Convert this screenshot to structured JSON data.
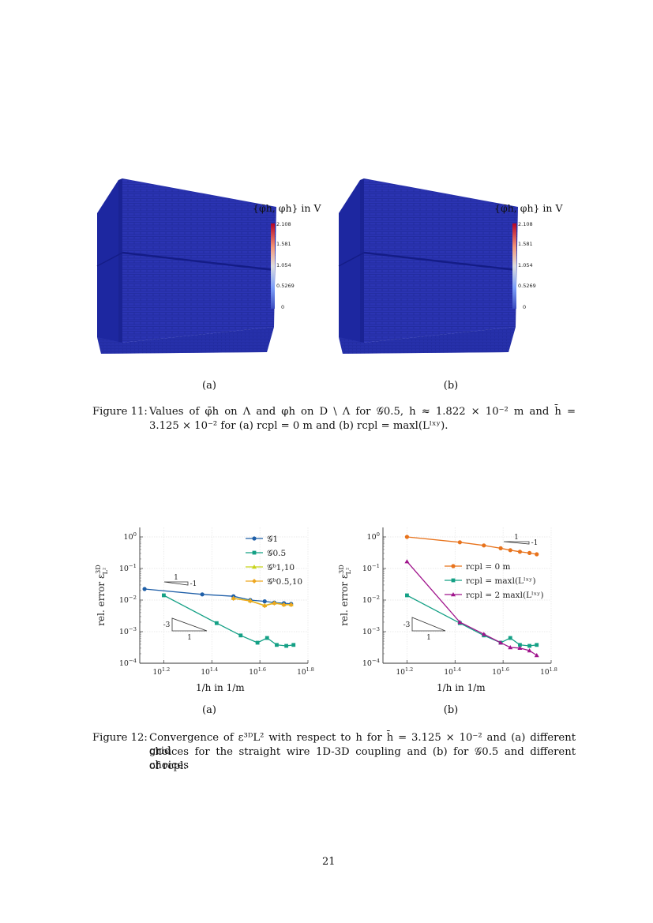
{
  "figure11": {
    "panels": [
      {
        "id": "a",
        "label": "(a)",
        "colorbar": {
          "title": "{φ̄h, φh} in V",
          "ticks": [
            "2.108",
            "1.581",
            "1.054",
            "0.5269",
            "0"
          ],
          "colors": [
            "#b40426",
            "#f4987a",
            "#dddddd",
            "#7da0f9",
            "#3b4cc0"
          ]
        }
      },
      {
        "id": "b",
        "label": "(b)",
        "colorbar": {
          "title": "{φ̄h, φh} in V",
          "ticks": [
            "2.108",
            "1.581",
            "1.054",
            "0.5269",
            "0"
          ],
          "colors": [
            "#b40426",
            "#f4987a",
            "#dddddd",
            "#7da0f9",
            "#3b4cc0"
          ]
        }
      }
    ],
    "cube_color": "#2a35b0",
    "caption_label": "Figure 11:",
    "caption_line1": "Values of φ̄h on Λ and φh on D \\ Λ for 𝒢0.5, h ≈ 1.822 × 10⁻² m and h̄ =",
    "caption_line2": "3.125 × 10⁻² for (a) rcpl = 0 m and (b) rcpl = maxl(Lˡˣʸ)."
  },
  "figure12": {
    "panels": [
      {
        "label": "(a)"
      },
      {
        "label": "(b)"
      }
    ],
    "caption_label": "Figure 12:",
    "caption_line1": "Convergence of ε³ᴰL² with respect to h for h̄ = 3.125 × 10⁻² and (a) different grid",
    "caption_line2": "choices for the straight wire 1D-3D coupling and (b) for 𝒢0.5 and different choices",
    "caption_line3": "of rcpl."
  },
  "chart_data": [
    {
      "type": "line",
      "title": "(a)",
      "xlabel": "1/h in 1/m",
      "ylabel": "rel. error ε³ᴰL²",
      "xscale": "log",
      "yscale": "log",
      "xlim_log10": [
        1.1,
        1.8
      ],
      "ylim_log10": [
        -4,
        0.3
      ],
      "xticks": [
        "10^1.2",
        "10^1.4",
        "10^1.6",
        "10^1.8"
      ],
      "yticks": [
        "10^0",
        "10^-1",
        "10^-2",
        "10^-3",
        "10^-4"
      ],
      "grid": true,
      "legend_position": "upper right",
      "slope_triangles": [
        {
          "label_run": "1",
          "label_rise": "-1"
        },
        {
          "label_run": "1",
          "label_rise": "-3"
        }
      ],
      "series": [
        {
          "name": "𝒢1",
          "color": "#1f5fa8",
          "marker": "circle",
          "x_log10": [
            1.12,
            1.36,
            1.49,
            1.56,
            1.62,
            1.66,
            1.7,
            1.73
          ],
          "y_log10": [
            -1.65,
            -1.82,
            -1.88,
            -2.0,
            -2.04,
            -2.08,
            -2.1,
            -2.12
          ]
        },
        {
          "name": "𝒢0.5",
          "color": "#14a085",
          "marker": "square",
          "x_log10": [
            1.2,
            1.42,
            1.52,
            1.59,
            1.63,
            1.67,
            1.71,
            1.74
          ],
          "y_log10": [
            -1.85,
            -2.73,
            -3.12,
            -3.35,
            -3.2,
            -3.42,
            -3.45,
            -3.42
          ]
        },
        {
          "name": "𝒢ᵇ1,10",
          "color": "#c8d41a",
          "marker": "triangle",
          "x_log10": [
            1.49,
            1.56,
            1.62,
            1.66,
            1.7,
            1.73
          ],
          "y_log10": [
            -1.94,
            -2.02,
            -2.17,
            -2.09,
            -2.14,
            -2.14
          ]
        },
        {
          "name": "𝒢ᵇ0.5,10",
          "color": "#eea720",
          "marker": "diamond",
          "x_log10": [
            1.49,
            1.56,
            1.62,
            1.66,
            1.7,
            1.73
          ],
          "y_log10": [
            -1.95,
            -2.03,
            -2.18,
            -2.1,
            -2.15,
            -2.15
          ]
        }
      ]
    },
    {
      "type": "line",
      "title": "(b)",
      "xlabel": "1/h in 1/m",
      "ylabel": "rel. error ε³ᴰL²",
      "xscale": "log",
      "yscale": "log",
      "xlim_log10": [
        1.1,
        1.8
      ],
      "ylim_log10": [
        -4,
        0.3
      ],
      "xticks": [
        "10^1.2",
        "10^1.4",
        "10^1.6",
        "10^1.8"
      ],
      "yticks": [
        "10^0",
        "10^-1",
        "10^-2",
        "10^-3",
        "10^-4"
      ],
      "grid": true,
      "legend_position": "center right",
      "slope_triangles": [
        {
          "label_run": "1",
          "label_rise": "-1"
        },
        {
          "label_run": "1",
          "label_rise": "-3"
        }
      ],
      "series": [
        {
          "name": "rcpl = 0 m",
          "color": "#e8731c",
          "marker": "circle",
          "x_log10": [
            1.2,
            1.42,
            1.52,
            1.59,
            1.63,
            1.67,
            1.71,
            1.74
          ],
          "y_log10": [
            0.0,
            -0.17,
            -0.27,
            -0.36,
            -0.42,
            -0.47,
            -0.51,
            -0.55
          ]
        },
        {
          "name": "rcpl = maxl(Lˡˣʸ)",
          "color": "#14a085",
          "marker": "square",
          "x_log10": [
            1.2,
            1.42,
            1.52,
            1.59,
            1.63,
            1.67,
            1.71,
            1.74
          ],
          "y_log10": [
            -1.85,
            -2.73,
            -3.12,
            -3.35,
            -3.2,
            -3.42,
            -3.45,
            -3.42
          ]
        },
        {
          "name": "rcpl = 2 maxl(Lˡˣʸ)",
          "color": "#a0148c",
          "marker": "triangle",
          "x_log10": [
            1.2,
            1.42,
            1.52,
            1.59,
            1.63,
            1.67,
            1.71,
            1.74
          ],
          "y_log10": [
            -0.78,
            -2.7,
            -3.08,
            -3.35,
            -3.5,
            -3.52,
            -3.6,
            -3.75
          ]
        }
      ]
    }
  ],
  "page_number": "21"
}
